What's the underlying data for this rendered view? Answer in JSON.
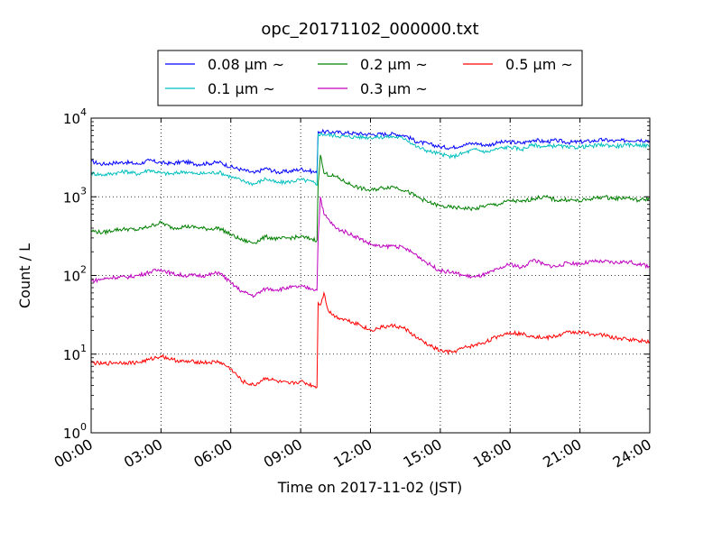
{
  "chart_data": {
    "type": "line",
    "title": "opc_20171102_000000.txt",
    "xlabel": "Time on 2017-11-02 (JST)",
    "ylabel": "Count / L",
    "x_unit": "hours",
    "xlim": [
      0,
      24
    ],
    "ylim": [
      1,
      10000
    ],
    "yscale": "log",
    "grid": true,
    "legend_position": "top",
    "x_ticks": [
      {
        "value": 0,
        "label": "00:00"
      },
      {
        "value": 3,
        "label": "03:00"
      },
      {
        "value": 6,
        "label": "06:00"
      },
      {
        "value": 9,
        "label": "09:00"
      },
      {
        "value": 12,
        "label": "12:00"
      },
      {
        "value": 15,
        "label": "15:00"
      },
      {
        "value": 18,
        "label": "18:00"
      },
      {
        "value": 21,
        "label": "21:00"
      },
      {
        "value": 24,
        "label": "24:00"
      }
    ],
    "y_ticks": [
      {
        "value": 1,
        "base": "10",
        "exp": "0"
      },
      {
        "value": 10,
        "base": "10",
        "exp": "1"
      },
      {
        "value": 100,
        "base": "10",
        "exp": "2"
      },
      {
        "value": 1000,
        "base": "10",
        "exp": "3"
      },
      {
        "value": 10000,
        "base": "10",
        "exp": "4"
      }
    ],
    "series": [
      {
        "name": "0.08 μm ~",
        "color": "#0000ff",
        "points": [
          [
            0,
            2800
          ],
          [
            0.5,
            2600
          ],
          [
            1,
            2700
          ],
          [
            1.5,
            2750
          ],
          [
            2,
            2600
          ],
          [
            2.5,
            2900
          ],
          [
            3,
            2700
          ],
          [
            3.5,
            2650
          ],
          [
            4,
            2800
          ],
          [
            4.5,
            2600
          ],
          [
            5,
            2650
          ],
          [
            5.5,
            2750
          ],
          [
            6,
            2400
          ],
          [
            6.5,
            2200
          ],
          [
            7,
            2000
          ],
          [
            7.5,
            2300
          ],
          [
            8,
            2050
          ],
          [
            8.5,
            2100
          ],
          [
            9,
            2250
          ],
          [
            9.5,
            2100
          ],
          [
            9.7,
            2000
          ],
          [
            9.75,
            6800
          ],
          [
            10,
            6700
          ],
          [
            11,
            6500
          ],
          [
            12,
            6200
          ],
          [
            13,
            6300
          ],
          [
            13.5,
            6000
          ],
          [
            14,
            5000
          ],
          [
            14.5,
            4700
          ],
          [
            15,
            4300
          ],
          [
            15.5,
            4200
          ],
          [
            16,
            4600
          ],
          [
            16.5,
            4800
          ],
          [
            17,
            4500
          ],
          [
            17.5,
            4900
          ],
          [
            18,
            5000
          ],
          [
            18.5,
            4800
          ],
          [
            19,
            5300
          ],
          [
            19.5,
            5000
          ],
          [
            20,
            5200
          ],
          [
            20.5,
            4900
          ],
          [
            21,
            5000
          ],
          [
            21.5,
            5100
          ],
          [
            22,
            5300
          ],
          [
            22.5,
            5100
          ],
          [
            23,
            5200
          ],
          [
            23.5,
            5300
          ],
          [
            24,
            5200
          ]
        ]
      },
      {
        "name": "0.1 μm ~",
        "color": "#00bfbf",
        "points": [
          [
            0,
            2000
          ],
          [
            0.5,
            1900
          ],
          [
            1,
            2000
          ],
          [
            1.5,
            2100
          ],
          [
            2,
            1950
          ],
          [
            2.5,
            2200
          ],
          [
            3,
            2000
          ],
          [
            3.5,
            1950
          ],
          [
            4,
            2100
          ],
          [
            4.5,
            1950
          ],
          [
            5,
            2000
          ],
          [
            5.5,
            2050
          ],
          [
            6,
            1800
          ],
          [
            6.5,
            1600
          ],
          [
            7,
            1450
          ],
          [
            7.5,
            1700
          ],
          [
            8,
            1500
          ],
          [
            8.5,
            1550
          ],
          [
            9,
            1650
          ],
          [
            9.5,
            1550
          ],
          [
            9.7,
            1400
          ],
          [
            9.75,
            6300
          ],
          [
            10,
            6200
          ],
          [
            11,
            5800
          ],
          [
            12,
            5700
          ],
          [
            13,
            5800
          ],
          [
            13.5,
            5500
          ],
          [
            14,
            4300
          ],
          [
            14.5,
            3800
          ],
          [
            15,
            3500
          ],
          [
            15.5,
            3200
          ],
          [
            16,
            3600
          ],
          [
            16.5,
            4000
          ],
          [
            17,
            3700
          ],
          [
            17.5,
            4100
          ],
          [
            18,
            4300
          ],
          [
            18.5,
            4000
          ],
          [
            19,
            4600
          ],
          [
            19.5,
            4300
          ],
          [
            20,
            4500
          ],
          [
            20.5,
            4200
          ],
          [
            21,
            4300
          ],
          [
            21.5,
            4400
          ],
          [
            22,
            4600
          ],
          [
            22.5,
            4400
          ],
          [
            23,
            4500
          ],
          [
            23.5,
            4600
          ],
          [
            24,
            4400
          ]
        ]
      },
      {
        "name": "0.2 μm ~",
        "color": "#008000",
        "points": [
          [
            0,
            370
          ],
          [
            0.5,
            350
          ],
          [
            1,
            380
          ],
          [
            1.5,
            390
          ],
          [
            2,
            380
          ],
          [
            2.5,
            420
          ],
          [
            3,
            470
          ],
          [
            3.5,
            400
          ],
          [
            4,
            420
          ],
          [
            4.5,
            410
          ],
          [
            5,
            390
          ],
          [
            5.5,
            400
          ],
          [
            6,
            330
          ],
          [
            6.5,
            280
          ],
          [
            7,
            260
          ],
          [
            7.5,
            310
          ],
          [
            8,
            290
          ],
          [
            8.5,
            300
          ],
          [
            9,
            310
          ],
          [
            9.5,
            290
          ],
          [
            9.7,
            280
          ],
          [
            9.75,
            1500
          ],
          [
            9.85,
            3400
          ],
          [
            10,
            2000
          ],
          [
            10.5,
            1800
          ],
          [
            11,
            1500
          ],
          [
            11.5,
            1300
          ],
          [
            12,
            1200
          ],
          [
            12.5,
            1300
          ],
          [
            13,
            1350
          ],
          [
            13.5,
            1200
          ],
          [
            14,
            1000
          ],
          [
            14.5,
            850
          ],
          [
            15,
            760
          ],
          [
            15.5,
            730
          ],
          [
            16,
            720
          ],
          [
            16.5,
            700
          ],
          [
            17,
            780
          ],
          [
            17.5,
            800
          ],
          [
            18,
            900
          ],
          [
            18.5,
            860
          ],
          [
            19,
            950
          ],
          [
            19.5,
            1000
          ],
          [
            20,
            900
          ],
          [
            20.5,
            920
          ],
          [
            21,
            880
          ],
          [
            21.5,
            950
          ],
          [
            22,
            1000
          ],
          [
            22.5,
            950
          ],
          [
            23,
            980
          ],
          [
            23.5,
            900
          ],
          [
            24,
            950
          ]
        ]
      },
      {
        "name": "0.3 μm ~",
        "color": "#bf00bf",
        "points": [
          [
            0,
            85
          ],
          [
            0.5,
            90
          ],
          [
            1,
            95
          ],
          [
            1.5,
            95
          ],
          [
            2,
            100
          ],
          [
            2.5,
            110
          ],
          [
            3,
            120
          ],
          [
            3.5,
            105
          ],
          [
            4,
            100
          ],
          [
            4.5,
            100
          ],
          [
            5,
            100
          ],
          [
            5.5,
            110
          ],
          [
            6,
            80
          ],
          [
            6.5,
            62
          ],
          [
            7,
            55
          ],
          [
            7.5,
            68
          ],
          [
            8,
            66
          ],
          [
            8.5,
            70
          ],
          [
            9,
            72
          ],
          [
            9.5,
            68
          ],
          [
            9.7,
            65
          ],
          [
            9.75,
            300
          ],
          [
            9.85,
            1000
          ],
          [
            10,
            600
          ],
          [
            10.5,
            400
          ],
          [
            11,
            350
          ],
          [
            11.5,
            300
          ],
          [
            12,
            250
          ],
          [
            12.5,
            230
          ],
          [
            13,
            240
          ],
          [
            13.5,
            220
          ],
          [
            14,
            180
          ],
          [
            14.5,
            140
          ],
          [
            15,
            115
          ],
          [
            15.5,
            110
          ],
          [
            16,
            100
          ],
          [
            16.5,
            95
          ],
          [
            17,
            105
          ],
          [
            17.5,
            120
          ],
          [
            18,
            140
          ],
          [
            18.5,
            125
          ],
          [
            19,
            160
          ],
          [
            19.5,
            135
          ],
          [
            20,
            130
          ],
          [
            20.5,
            145
          ],
          [
            21,
            140
          ],
          [
            21.5,
            150
          ],
          [
            22,
            150
          ],
          [
            22.5,
            145
          ],
          [
            23,
            150
          ],
          [
            23.5,
            140
          ],
          [
            24,
            130
          ]
        ]
      },
      {
        "name": "0.5 μm ~",
        "color": "#ff0000",
        "points": [
          [
            0,
            7.8
          ],
          [
            0.5,
            7.5
          ],
          [
            1,
            7.8
          ],
          [
            1.5,
            7.8
          ],
          [
            2,
            7.8
          ],
          [
            2.5,
            8.5
          ],
          [
            3,
            9.5
          ],
          [
            3.5,
            8.5
          ],
          [
            4,
            8
          ],
          [
            4.5,
            8
          ],
          [
            5,
            7.8
          ],
          [
            5.5,
            8
          ],
          [
            6,
            6.5
          ],
          [
            6.5,
            4.5
          ],
          [
            7,
            4
          ],
          [
            7.5,
            5
          ],
          [
            8,
            4.5
          ],
          [
            8.5,
            4.2
          ],
          [
            9,
            4.5
          ],
          [
            9.5,
            4
          ],
          [
            9.7,
            3.8
          ],
          [
            9.75,
            45
          ],
          [
            9.85,
            42
          ],
          [
            10,
            60
          ],
          [
            10.2,
            35
          ],
          [
            10.5,
            30
          ],
          [
            11,
            27
          ],
          [
            11.5,
            24
          ],
          [
            12,
            20
          ],
          [
            12.5,
            22
          ],
          [
            13,
            23
          ],
          [
            13.5,
            21
          ],
          [
            14,
            16
          ],
          [
            14.5,
            13
          ],
          [
            15,
            11
          ],
          [
            15.5,
            10.5
          ],
          [
            16,
            12
          ],
          [
            16.5,
            13
          ],
          [
            17,
            14.5
          ],
          [
            17.5,
            17
          ],
          [
            18,
            19
          ],
          [
            18.5,
            18
          ],
          [
            19,
            17
          ],
          [
            19.5,
            16
          ],
          [
            20,
            17
          ],
          [
            20.5,
            19
          ],
          [
            21,
            19
          ],
          [
            21.5,
            18
          ],
          [
            22,
            17.5
          ],
          [
            22.5,
            16
          ],
          [
            23,
            15.5
          ],
          [
            23.5,
            15
          ],
          [
            24,
            14.5
          ]
        ]
      }
    ]
  }
}
